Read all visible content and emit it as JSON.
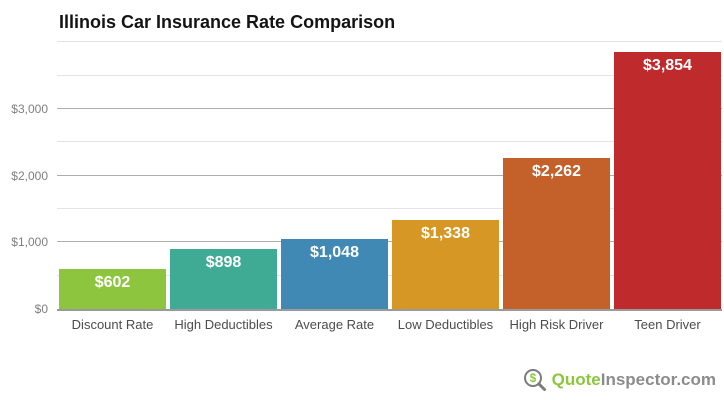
{
  "chart_data": {
    "type": "bar",
    "title": "Illinois Car Insurance Rate Comparison",
    "categories": [
      "Discount Rate",
      "High Deductibles",
      "Average Rate",
      "Low Deductibles",
      "High Risk Driver",
      "Teen Driver"
    ],
    "values": [
      602,
      898,
      1048,
      1338,
      2262,
      3854
    ],
    "bar_labels": [
      "$602",
      "$898",
      "$1,048",
      "$1,338",
      "$2,262",
      "$3,854"
    ],
    "bar_colors": [
      "#8dc63e",
      "#3fab94",
      "#4089b5",
      "#d79724",
      "#c4602a",
      "#bf2a2d"
    ],
    "xlabel": "",
    "ylabel": "",
    "ylim": [
      0,
      4005
    ],
    "grid_step": 500,
    "grid_on": true,
    "legend": "none",
    "y_ticks": [
      {
        "value": 0,
        "label": "$0"
      },
      {
        "value": 1000,
        "label": "$1,000"
      },
      {
        "value": 2000,
        "label": "$2,000"
      },
      {
        "value": 3000,
        "label": "$3,000"
      }
    ]
  },
  "watermark": {
    "icon": "magnifier-dollar-icon",
    "green_text": "Quote",
    "gray_text": "Inspector.com",
    "green_color": "#8cc63e",
    "gray_color": "#8c8c8c"
  }
}
